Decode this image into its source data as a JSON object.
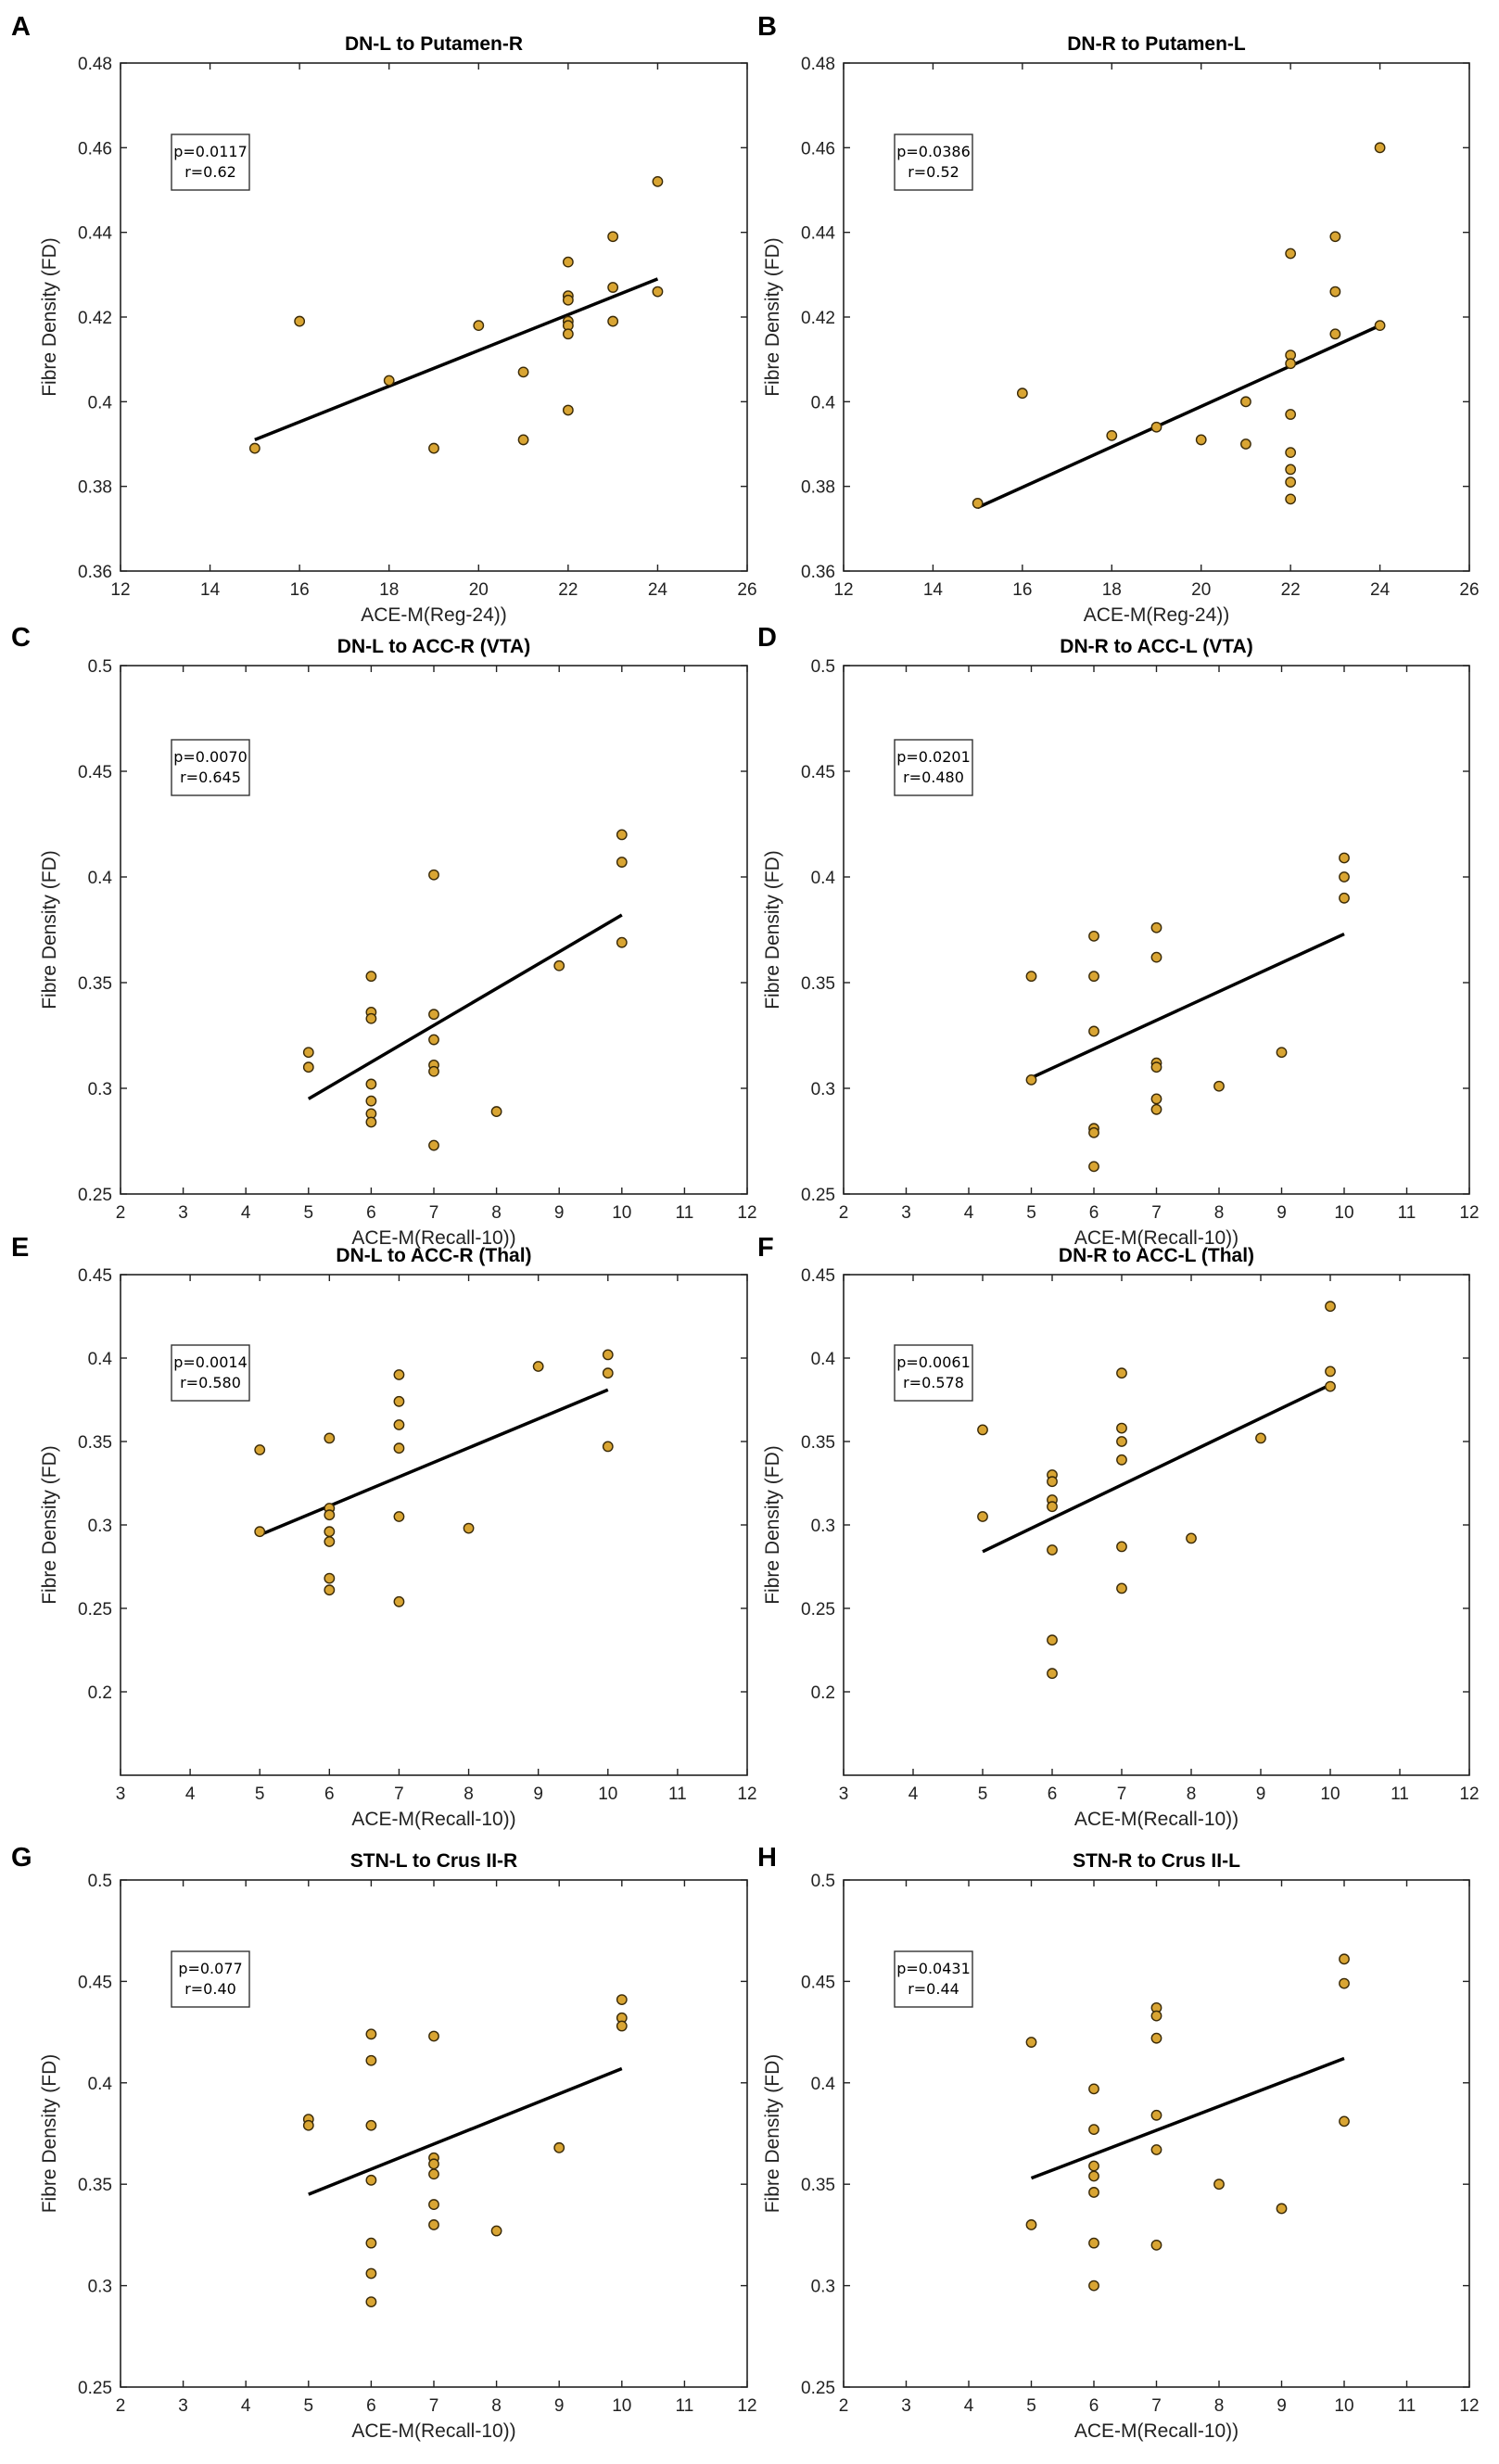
{
  "chart_data": [
    {
      "panel": "A",
      "type": "scatter",
      "title": "DN-L to Putamen-R",
      "xlabel": "ACE-M(Reg-24))",
      "ylabel": "Fibre Density (FD)",
      "xlim": [
        12,
        26
      ],
      "ylim": [
        0.36,
        0.48
      ],
      "xticks": [
        12,
        14,
        16,
        18,
        20,
        22,
        24,
        26
      ],
      "xtick_labels": [
        "12",
        "14",
        "16",
        "18",
        "20",
        "22",
        "24",
        "26"
      ],
      "yticks": [
        0.36,
        0.38,
        0.4,
        0.42,
        0.44,
        0.46,
        0.48
      ],
      "ytick_labels": [
        "0.36",
        "0.38",
        "0.4",
        "0.42",
        "0.44",
        "0.46",
        "0.48"
      ],
      "stats": [
        "p=0.0117",
        "r=0.62"
      ],
      "points": [
        [
          15,
          0.389
        ],
        [
          16,
          0.419
        ],
        [
          18,
          0.405
        ],
        [
          19,
          0.389
        ],
        [
          20,
          0.418
        ],
        [
          21,
          0.407
        ],
        [
          21,
          0.391
        ],
        [
          22,
          0.433
        ],
        [
          22,
          0.425
        ],
        [
          22,
          0.424
        ],
        [
          22,
          0.419
        ],
        [
          22,
          0.418
        ],
        [
          22,
          0.416
        ],
        [
          22,
          0.398
        ],
        [
          23,
          0.439
        ],
        [
          23,
          0.427
        ],
        [
          23,
          0.419
        ],
        [
          24,
          0.452
        ],
        [
          24,
          0.426
        ]
      ],
      "fit": [
        [
          15,
          0.391
        ],
        [
          24,
          0.429
        ]
      ]
    },
    {
      "panel": "B",
      "type": "scatter",
      "title": "DN-R to Putamen-L",
      "xlabel": "ACE-M(Reg-24))",
      "ylabel": "Fibre Density (FD)",
      "xlim": [
        12,
        26
      ],
      "ylim": [
        0.36,
        0.48
      ],
      "xticks": [
        12,
        14,
        16,
        18,
        20,
        22,
        24,
        26
      ],
      "xtick_labels": [
        "12",
        "14",
        "16",
        "18",
        "20",
        "22",
        "24",
        "26"
      ],
      "yticks": [
        0.36,
        0.38,
        0.4,
        0.42,
        0.44,
        0.46,
        0.48
      ],
      "ytick_labels": [
        "0.36",
        "0.38",
        "0.4",
        "0.42",
        "0.44",
        "0.46",
        "0.48"
      ],
      "stats": [
        "p=0.0386",
        "r=0.52"
      ],
      "points": [
        [
          15,
          0.376
        ],
        [
          16,
          0.402
        ],
        [
          18,
          0.392
        ],
        [
          19,
          0.394
        ],
        [
          20,
          0.391
        ],
        [
          21,
          0.4
        ],
        [
          21,
          0.39
        ],
        [
          22,
          0.435
        ],
        [
          22,
          0.411
        ],
        [
          22,
          0.409
        ],
        [
          22,
          0.397
        ],
        [
          22,
          0.388
        ],
        [
          22,
          0.384
        ],
        [
          22,
          0.381
        ],
        [
          22,
          0.377
        ],
        [
          23,
          0.439
        ],
        [
          23,
          0.426
        ],
        [
          23,
          0.416
        ],
        [
          24,
          0.46
        ],
        [
          24,
          0.418
        ]
      ],
      "fit": [
        [
          15,
          0.375
        ],
        [
          24,
          0.418
        ]
      ]
    },
    {
      "panel": "C",
      "type": "scatter",
      "title": "DN-L to ACC-R (VTA)",
      "xlabel": "ACE-M(Recall-10))",
      "ylabel": "Fibre Density (FD)",
      "xlim": [
        2,
        12
      ],
      "ylim": [
        0.25,
        0.5
      ],
      "xticks": [
        2,
        3,
        4,
        5,
        6,
        7,
        8,
        9,
        10,
        11,
        12
      ],
      "xtick_labels": [
        "2",
        "3",
        "4",
        "5",
        "6",
        "7",
        "8",
        "9",
        "10",
        "11",
        "12"
      ],
      "yticks": [
        0.25,
        0.3,
        0.35,
        0.4,
        0.45,
        0.5
      ],
      "ytick_labels": [
        "0.25",
        "0.3",
        "0.35",
        "0.4",
        "0.45",
        "0.5"
      ],
      "stats": [
        "p=0.0070",
        "r=0.645"
      ],
      "points": [
        [
          5,
          0.317
        ],
        [
          5,
          0.31
        ],
        [
          6,
          0.353
        ],
        [
          6,
          0.336
        ],
        [
          6,
          0.333
        ],
        [
          6,
          0.302
        ],
        [
          6,
          0.294
        ],
        [
          6,
          0.288
        ],
        [
          6,
          0.284
        ],
        [
          7,
          0.401
        ],
        [
          7,
          0.335
        ],
        [
          7,
          0.323
        ],
        [
          7,
          0.311
        ],
        [
          7,
          0.308
        ],
        [
          7,
          0.273
        ],
        [
          8,
          0.289
        ],
        [
          9,
          0.358
        ],
        [
          10,
          0.42
        ],
        [
          10,
          0.407
        ],
        [
          10,
          0.369
        ]
      ],
      "fit": [
        [
          5,
          0.295
        ],
        [
          10,
          0.382
        ]
      ]
    },
    {
      "panel": "D",
      "type": "scatter",
      "title": "DN-R to ACC-L (VTA)",
      "xlabel": "ACE-M(Recall-10))",
      "ylabel": "Fibre Density (FD)",
      "xlim": [
        2,
        12
      ],
      "ylim": [
        0.25,
        0.5
      ],
      "xticks": [
        2,
        3,
        4,
        5,
        6,
        7,
        8,
        9,
        10,
        11,
        12
      ],
      "xtick_labels": [
        "2",
        "3",
        "4",
        "5",
        "6",
        "7",
        "8",
        "9",
        "10",
        "11",
        "12"
      ],
      "yticks": [
        0.25,
        0.3,
        0.35,
        0.4,
        0.45,
        0.5
      ],
      "ytick_labels": [
        "0.25",
        "0.3",
        "0.35",
        "0.4",
        "0.45",
        "0.5"
      ],
      "stats": [
        "p=0.0201",
        "r=0.480"
      ],
      "points": [
        [
          5,
          0.353
        ],
        [
          5,
          0.304
        ],
        [
          6,
          0.372
        ],
        [
          6,
          0.353
        ],
        [
          6,
          0.327
        ],
        [
          6,
          0.281
        ],
        [
          6,
          0.279
        ],
        [
          6,
          0.263
        ],
        [
          7,
          0.376
        ],
        [
          7,
          0.362
        ],
        [
          7,
          0.312
        ],
        [
          7,
          0.31
        ],
        [
          7,
          0.295
        ],
        [
          7,
          0.29
        ],
        [
          8,
          0.301
        ],
        [
          9,
          0.317
        ],
        [
          10,
          0.409
        ],
        [
          10,
          0.4
        ],
        [
          10,
          0.39
        ]
      ],
      "fit": [
        [
          5,
          0.305
        ],
        [
          10,
          0.373
        ]
      ]
    },
    {
      "panel": "E",
      "type": "scatter",
      "title": "DN-L to ACC-R (Thal)",
      "xlabel": "ACE-M(Recall-10))",
      "ylabel": "Fibre Density (FD)",
      "xlim": [
        3,
        12
      ],
      "ylim": [
        0.15,
        0.45
      ],
      "xticks": [
        3,
        4,
        5,
        6,
        7,
        8,
        9,
        10,
        11,
        12
      ],
      "xtick_labels": [
        "3",
        "4",
        "5",
        "6",
        "7",
        "8",
        "9",
        "10",
        "11",
        "12"
      ],
      "yticks": [
        0.2,
        0.25,
        0.3,
        0.35,
        0.4,
        0.45
      ],
      "ytick_labels": [
        "0.2",
        "0.25",
        "0.3",
        "0.35",
        "0.4",
        "0.45"
      ],
      "stats": [
        "p=0.0014",
        "r=0.580"
      ],
      "points": [
        [
          5,
          0.345
        ],
        [
          5,
          0.296
        ],
        [
          6,
          0.352
        ],
        [
          6,
          0.31
        ],
        [
          6,
          0.306
        ],
        [
          6,
          0.296
        ],
        [
          6,
          0.29
        ],
        [
          6,
          0.268
        ],
        [
          6,
          0.261
        ],
        [
          7,
          0.39
        ],
        [
          7,
          0.374
        ],
        [
          7,
          0.36
        ],
        [
          7,
          0.346
        ],
        [
          7,
          0.305
        ],
        [
          7,
          0.254
        ],
        [
          8,
          0.298
        ],
        [
          9,
          0.395
        ],
        [
          10,
          0.402
        ],
        [
          10,
          0.391
        ],
        [
          10,
          0.347
        ]
      ],
      "fit": [
        [
          5,
          0.294
        ],
        [
          10,
          0.381
        ]
      ]
    },
    {
      "panel": "F",
      "type": "scatter",
      "title": "DN-R to ACC-L (Thal)",
      "xlabel": "ACE-M(Recall-10))",
      "ylabel": "Fibre Density (FD)",
      "xlim": [
        3,
        12
      ],
      "ylim": [
        0.15,
        0.45
      ],
      "xticks": [
        3,
        4,
        5,
        6,
        7,
        8,
        9,
        10,
        11,
        12
      ],
      "xtick_labels": [
        "3",
        "4",
        "5",
        "6",
        "7",
        "8",
        "9",
        "10",
        "11",
        "12"
      ],
      "yticks": [
        0.2,
        0.25,
        0.3,
        0.35,
        0.4,
        0.45
      ],
      "ytick_labels": [
        "0.2",
        "0.25",
        "0.3",
        "0.35",
        "0.4",
        "0.45"
      ],
      "stats": [
        "p=0.0061",
        "r=0.578"
      ],
      "points": [
        [
          5,
          0.357
        ],
        [
          5,
          0.305
        ],
        [
          6,
          0.33
        ],
        [
          6,
          0.326
        ],
        [
          6,
          0.315
        ],
        [
          6,
          0.311
        ],
        [
          6,
          0.285
        ],
        [
          6,
          0.231
        ],
        [
          6,
          0.211
        ],
        [
          7,
          0.391
        ],
        [
          7,
          0.358
        ],
        [
          7,
          0.35
        ],
        [
          7,
          0.339
        ],
        [
          7,
          0.287
        ],
        [
          7,
          0.262
        ],
        [
          8,
          0.292
        ],
        [
          9,
          0.352
        ],
        [
          10,
          0.431
        ],
        [
          10,
          0.392
        ],
        [
          10,
          0.383
        ]
      ],
      "fit": [
        [
          5,
          0.284
        ],
        [
          10,
          0.384
        ]
      ]
    },
    {
      "panel": "G",
      "type": "scatter",
      "title": "STN-L to Crus II-R",
      "xlabel": "ACE-M(Recall-10))",
      "ylabel": "Fibre Density (FD)",
      "xlim": [
        2,
        12
      ],
      "ylim": [
        0.25,
        0.5
      ],
      "xticks": [
        2,
        3,
        4,
        5,
        6,
        7,
        8,
        9,
        10,
        11,
        12
      ],
      "xtick_labels": [
        "2",
        "3",
        "4",
        "5",
        "6",
        "7",
        "8",
        "9",
        "10",
        "11",
        "12"
      ],
      "yticks": [
        0.25,
        0.3,
        0.35,
        0.4,
        0.45,
        0.5
      ],
      "ytick_labels": [
        "0.25",
        "0.3",
        "0.35",
        "0.4",
        "0.45",
        "0.5"
      ],
      "stats": [
        "p=0.077",
        "r=0.40"
      ],
      "points": [
        [
          5,
          0.382
        ],
        [
          5,
          0.379
        ],
        [
          6,
          0.424
        ],
        [
          6,
          0.411
        ],
        [
          6,
          0.379
        ],
        [
          6,
          0.352
        ],
        [
          6,
          0.321
        ],
        [
          6,
          0.306
        ],
        [
          6,
          0.292
        ],
        [
          7,
          0.423
        ],
        [
          7,
          0.363
        ],
        [
          7,
          0.36
        ],
        [
          7,
          0.355
        ],
        [
          7,
          0.34
        ],
        [
          7,
          0.33
        ],
        [
          8,
          0.327
        ],
        [
          9,
          0.368
        ],
        [
          10,
          0.441
        ],
        [
          10,
          0.432
        ],
        [
          10,
          0.428
        ]
      ],
      "fit": [
        [
          5,
          0.345
        ],
        [
          10,
          0.407
        ]
      ]
    },
    {
      "panel": "H",
      "type": "scatter",
      "title": "STN-R to Crus II-L",
      "xlabel": "ACE-M(Recall-10))",
      "ylabel": "Fibre Density (FD)",
      "xlim": [
        2,
        12
      ],
      "ylim": [
        0.25,
        0.5
      ],
      "xticks": [
        2,
        3,
        4,
        5,
        6,
        7,
        8,
        9,
        10,
        11,
        12
      ],
      "xtick_labels": [
        "2",
        "3",
        "4",
        "5",
        "6",
        "7",
        "8",
        "9",
        "10",
        "11",
        "12"
      ],
      "yticks": [
        0.25,
        0.3,
        0.35,
        0.4,
        0.45,
        0.5
      ],
      "ytick_labels": [
        "0.25",
        "0.3",
        "0.35",
        "0.4",
        "0.45",
        "0.5"
      ],
      "stats": [
        "p=0.0431",
        "r=0.44"
      ],
      "points": [
        [
          5,
          0.42
        ],
        [
          5,
          0.33
        ],
        [
          6,
          0.397
        ],
        [
          6,
          0.377
        ],
        [
          6,
          0.359
        ],
        [
          6,
          0.354
        ],
        [
          6,
          0.346
        ],
        [
          6,
          0.321
        ],
        [
          6,
          0.3
        ],
        [
          7,
          0.437
        ],
        [
          7,
          0.433
        ],
        [
          7,
          0.422
        ],
        [
          7,
          0.384
        ],
        [
          7,
          0.367
        ],
        [
          7,
          0.32
        ],
        [
          8,
          0.35
        ],
        [
          9,
          0.338
        ],
        [
          10,
          0.461
        ],
        [
          10,
          0.449
        ],
        [
          10,
          0.381
        ]
      ],
      "fit": [
        [
          5,
          0.353
        ],
        [
          10,
          0.412
        ]
      ]
    }
  ],
  "colors": {
    "marker_fill": "#d9a533",
    "marker_edge": "#3a2a08",
    "fit_line": "#000000",
    "axis": "#222222"
  }
}
